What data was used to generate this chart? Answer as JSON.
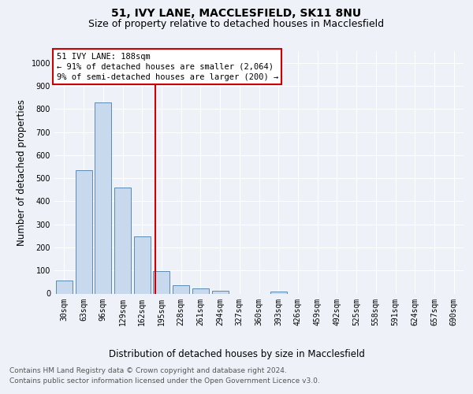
{
  "title": "51, IVY LANE, MACCLESFIELD, SK11 8NU",
  "subtitle": "Size of property relative to detached houses in Macclesfield",
  "xlabel": "Distribution of detached houses by size in Macclesfield",
  "ylabel": "Number of detached properties",
  "footer_line1": "Contains HM Land Registry data © Crown copyright and database right 2024.",
  "footer_line2": "Contains public sector information licensed under the Open Government Licence v3.0.",
  "bin_labels": [
    "30sqm",
    "63sqm",
    "96sqm",
    "129sqm",
    "162sqm",
    "195sqm",
    "228sqm",
    "261sqm",
    "294sqm",
    "327sqm",
    "360sqm",
    "393sqm",
    "426sqm",
    "459sqm",
    "492sqm",
    "525sqm",
    "558sqm",
    "591sqm",
    "624sqm",
    "657sqm",
    "690sqm"
  ],
  "bar_values": [
    55,
    535,
    828,
    460,
    248,
    98,
    35,
    22,
    12,
    0,
    0,
    9,
    0,
    0,
    0,
    0,
    0,
    0,
    0,
    0,
    0
  ],
  "bar_color": "#c9d9ed",
  "bar_edge_color": "#5a8ab0",
  "vline_x": 4.67,
  "vline_color": "#cc0000",
  "annotation_text": "51 IVY LANE: 188sqm\n← 91% of detached houses are smaller (2,064)\n9% of semi-detached houses are larger (200) →",
  "annotation_box_color": "#cc0000",
  "annotation_text_color": "#000000",
  "ylim": [
    0,
    1050
  ],
  "yticks": [
    0,
    100,
    200,
    300,
    400,
    500,
    600,
    700,
    800,
    900,
    1000
  ],
  "background_color": "#eef2f8",
  "plot_bg_color": "#eef2f8",
  "grid_color": "#ffffff",
  "title_fontsize": 10,
  "subtitle_fontsize": 9,
  "axis_label_fontsize": 8.5,
  "tick_fontsize": 7,
  "footer_fontsize": 6.5
}
